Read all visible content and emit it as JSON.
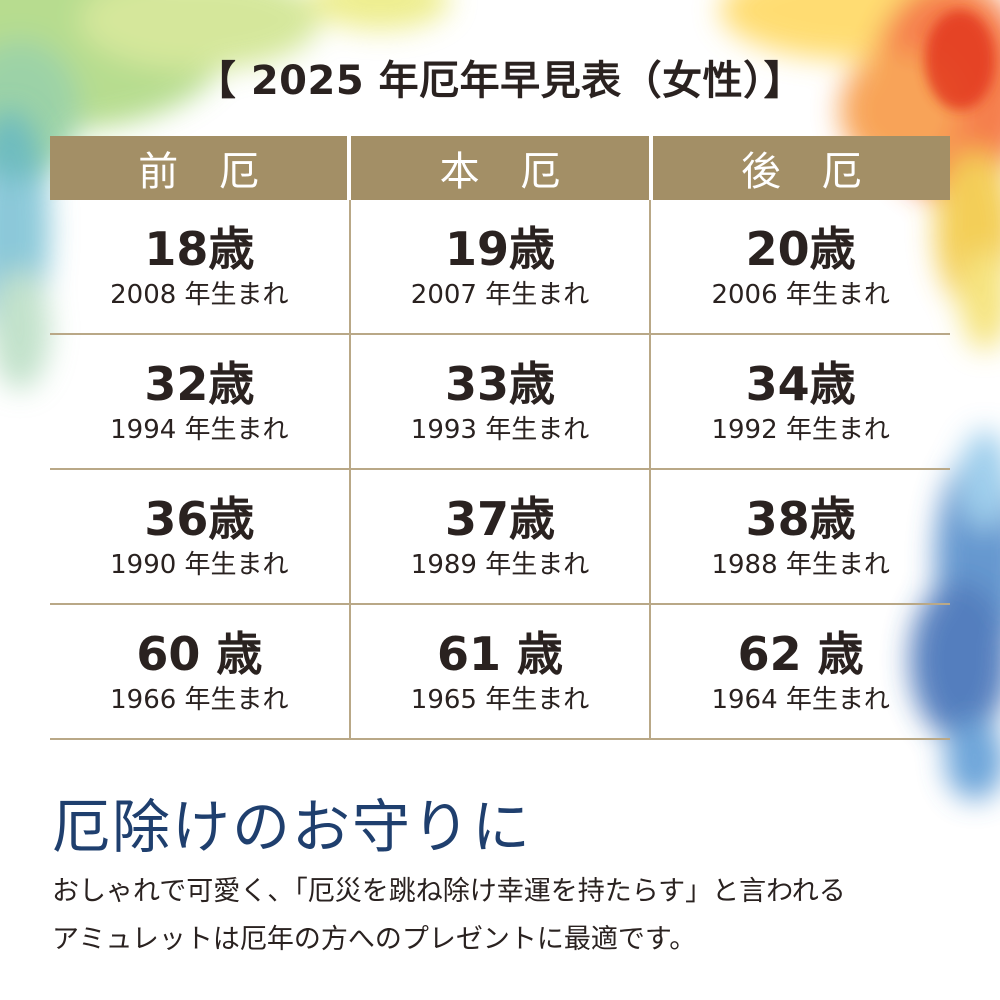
{
  "title": "【 2025 年厄年早見表（女性）】",
  "table": {
    "headers": [
      "前 厄",
      "本 厄",
      "後 厄"
    ],
    "rows": [
      [
        {
          "age": "18歳",
          "born": "2008 年生まれ"
        },
        {
          "age": "19歳",
          "born": "2007 年生まれ"
        },
        {
          "age": "20歳",
          "born": "2006 年生まれ"
        }
      ],
      [
        {
          "age": "32歳",
          "born": "1994 年生まれ"
        },
        {
          "age": "33歳",
          "born": "1993 年生まれ"
        },
        {
          "age": "34歳",
          "born": "1992 年生まれ"
        }
      ],
      [
        {
          "age": "36歳",
          "born": "1990 年生まれ"
        },
        {
          "age": "37歳",
          "born": "1989 年生まれ"
        },
        {
          "age": "38歳",
          "born": "1988 年生まれ"
        }
      ],
      [
        {
          "age": "60 歳",
          "born": "1966 年生まれ"
        },
        {
          "age": "61 歳",
          "born": "1965 年生まれ"
        },
        {
          "age": "62 歳",
          "born": "1964 年生まれ"
        }
      ]
    ]
  },
  "section": {
    "heading": "厄除けのお守りに",
    "lines": [
      "おしゃれで可愛く、「厄災を跳ね除け幸運を持たらす」と言われる",
      "アミュレットは厄年の方へのプレゼントに最適です。"
    ]
  },
  "colors": {
    "header_bg": "#a38f66",
    "heading_blue": "#1f3f6e",
    "text": "#2a2220"
  }
}
